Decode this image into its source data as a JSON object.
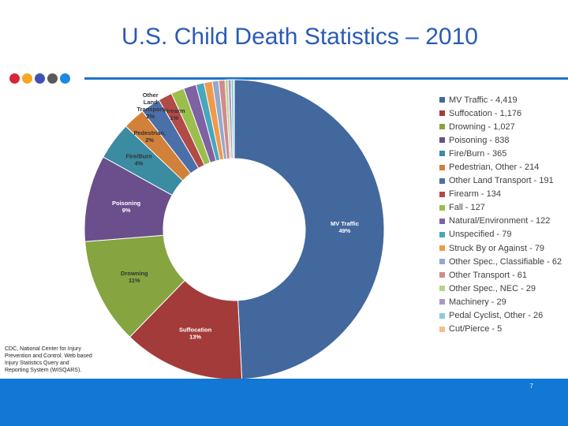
{
  "slide": {
    "title": "U.S. Child Death Statistics – 2010",
    "source": "CDC, National Center for Injury Prevention and Control. Web based Injury Statistics Query and Reporting System (WISQARS).",
    "page_number": "7"
  },
  "decor": {
    "dot_colors": [
      "#d7263d",
      "#f5a623",
      "#3f51b5",
      "#5a5a5a",
      "#1e88e5"
    ],
    "rule_color": "#1e73c7",
    "footer_color": "#1178d6"
  },
  "chart_data": {
    "type": "pie",
    "style": "donut",
    "legend_position": "right",
    "categories": [
      "MV Traffic",
      "Suffocation",
      "Drowning",
      "Poisoning",
      "Fire/Burn",
      "Pedestrian, Other",
      "Other Land Transport",
      "Firearm",
      "Fall",
      "Natural/Environment",
      "Unspecified",
      "Struck By or Against",
      "Other Spec., Classifiable",
      "Other Transport",
      "Other Spec., NEC",
      "Machinery",
      "Pedal Cyclist, Other",
      "Cut/Pierce"
    ],
    "values": [
      4419,
      1176,
      1027,
      838,
      365,
      214,
      191,
      134,
      127,
      122,
      79,
      79,
      62,
      61,
      29,
      29,
      26,
      5
    ],
    "colors": [
      "#42689e",
      "#a33b3a",
      "#86a43f",
      "#6b4f8c",
      "#3b8ba1",
      "#d2813a",
      "#4b6fa9",
      "#b24a48",
      "#9bbf4d",
      "#7f62a2",
      "#48a6bd",
      "#f09a4b",
      "#93a9cf",
      "#d28b8a",
      "#b9d38a",
      "#a897c4",
      "#8ccbdb",
      "#f5bf8c"
    ],
    "legend_labels": [
      "MV Traffic - 4,419",
      "Suffocation - 1,176",
      "Drowning - 1,027",
      "Poisoning - 838",
      "Fire/Burn - 365",
      "Pedestrian, Other - 214",
      "Other Land Transport - 191",
      "Firearm - 134",
      "Fall - 127",
      "Natural/Environment - 122",
      "Unspecified - 79",
      "Struck By or Against - 79",
      "Other Spec., Classifiable - 62",
      "Other Transport - 61",
      "Other Spec., NEC - 29",
      "Machinery - 29",
      "Pedal Cyclist, Other - 26",
      "Cut/Pierce - 5"
    ],
    "slice_labels": [
      {
        "index": 0,
        "lines": [
          "MV Traffic",
          "49%"
        ],
        "color": "#ffffff"
      },
      {
        "index": 1,
        "lines": [
          "Suffocation",
          "13%"
        ],
        "color": "#ffffff"
      },
      {
        "index": 2,
        "lines": [
          "Drowning",
          "11%"
        ],
        "color": "#333333"
      },
      {
        "index": 3,
        "lines": [
          "Poisoning",
          "9%"
        ],
        "color": "#ffffff"
      },
      {
        "index": 4,
        "lines": [
          "Fire/Burn",
          "4%"
        ],
        "color": "#333333"
      },
      {
        "index": 5,
        "lines": [
          "Pedestrian,",
          "2%"
        ],
        "color": "#333333"
      },
      {
        "index": 6,
        "lines": [
          "Other",
          "Land",
          "Transport",
          "2%"
        ],
        "color": "#333333"
      },
      {
        "index": 7,
        "lines": [
          "Firearm",
          "1%"
        ],
        "color": "#333333"
      }
    ]
  }
}
